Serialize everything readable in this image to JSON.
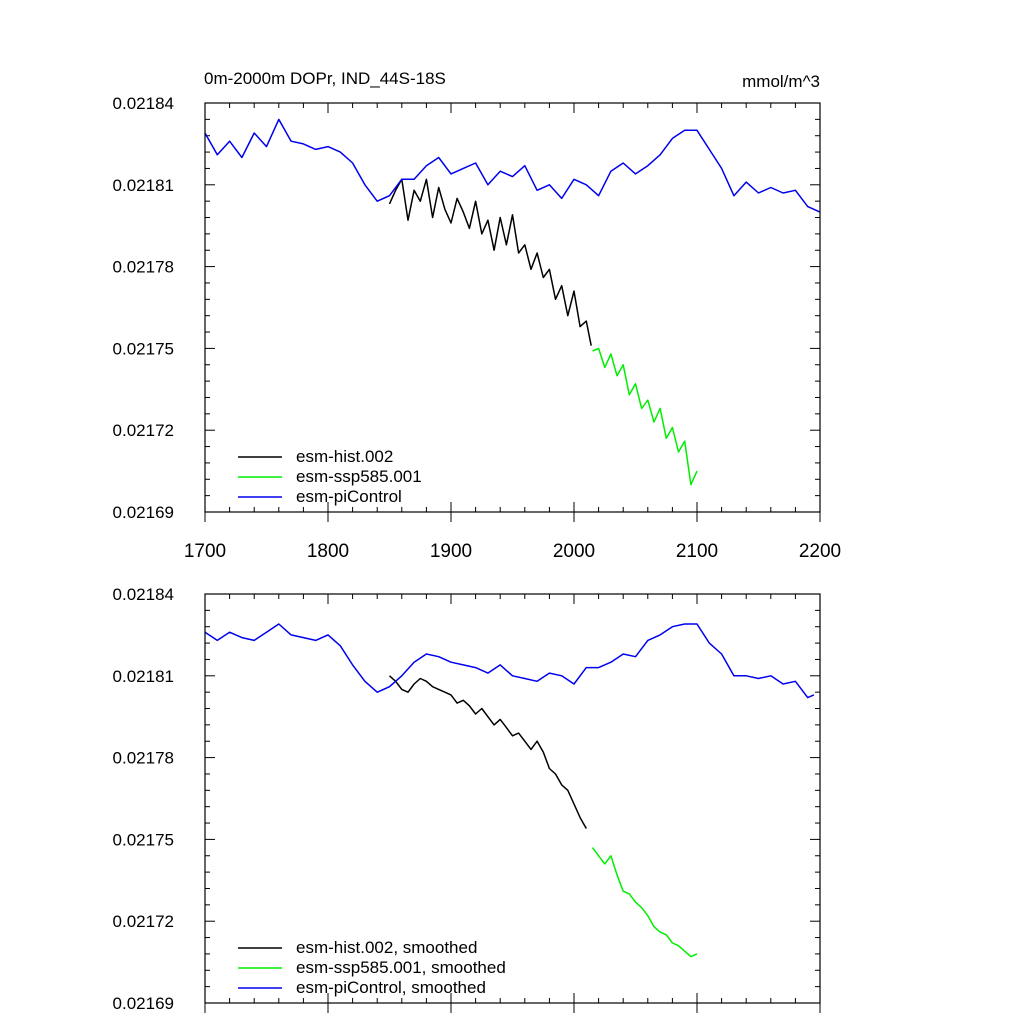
{
  "figure": {
    "title": "0m-2000m DOPr, IND_44S-18S",
    "units": "mmol/m^3"
  },
  "colors": {
    "esm_hist": "#000000",
    "esm_ssp585": "#00ee00",
    "esm_piControl": "#0000ee"
  },
  "chart_data": [
    {
      "type": "line",
      "title": "0m-2000m DOPr, IND_44S-18S",
      "units_label": "mmol/m^3",
      "xlabel": "",
      "ylabel": "",
      "xlim": [
        1700,
        2200
      ],
      "ylim": [
        0.02169,
        0.02184
      ],
      "x_ticks": [
        "1700",
        "1800",
        "1900",
        "2000",
        "2100",
        "2200"
      ],
      "y_ticks": [
        "0.02184",
        "0.02181",
        "0.02178",
        "0.02175",
        "0.02172",
        "0.02169"
      ],
      "grid": false,
      "legend_position": "bottom-left",
      "series": [
        {
          "name": "esm-hist.002",
          "color": "#000000",
          "x": [
            1850,
            1855,
            1860,
            1865,
            1870,
            1875,
            1880,
            1885,
            1890,
            1895,
            1900,
            1905,
            1910,
            1915,
            1920,
            1925,
            1930,
            1935,
            1940,
            1945,
            1950,
            1955,
            1960,
            1965,
            1970,
            1975,
            1980,
            1985,
            1990,
            1995,
            2000,
            2005,
            2010,
            2014
          ],
          "y": [
            0.021803,
            0.021808,
            0.021812,
            0.021797,
            0.021808,
            0.021804,
            0.021812,
            0.021798,
            0.021809,
            0.021801,
            0.021796,
            0.021805,
            0.0218,
            0.021794,
            0.021804,
            0.021792,
            0.021797,
            0.021786,
            0.021798,
            0.021788,
            0.021799,
            0.021785,
            0.021788,
            0.021779,
            0.021785,
            0.021776,
            0.021779,
            0.021768,
            0.021773,
            0.021762,
            0.021771,
            0.021758,
            0.02176,
            0.021751
          ]
        },
        {
          "name": "esm-ssp585.001",
          "color": "#00ee00",
          "x": [
            2015,
            2020,
            2025,
            2030,
            2035,
            2040,
            2045,
            2050,
            2055,
            2060,
            2065,
            2070,
            2075,
            2080,
            2085,
            2090,
            2095,
            2100
          ],
          "y": [
            0.021749,
            0.02175,
            0.021743,
            0.021748,
            0.02174,
            0.021744,
            0.021733,
            0.021737,
            0.021728,
            0.021731,
            0.021723,
            0.021728,
            0.021717,
            0.021721,
            0.021712,
            0.021716,
            0.0217,
            0.021705
          ]
        },
        {
          "name": "esm-piControl",
          "color": "#0000ee",
          "x": [
            1700,
            1710,
            1720,
            1730,
            1740,
            1750,
            1760,
            1770,
            1780,
            1790,
            1800,
            1810,
            1820,
            1830,
            1840,
            1850,
            1860,
            1870,
            1880,
            1890,
            1900,
            1910,
            1920,
            1930,
            1940,
            1950,
            1960,
            1970,
            1980,
            1990,
            2000,
            2010,
            2020,
            2030,
            2040,
            2050,
            2060,
            2070,
            2080,
            2090,
            2100,
            2110,
            2120,
            2130,
            2140,
            2150,
            2160,
            2170,
            2180,
            2190,
            2200
          ],
          "y": [
            0.021829,
            0.021821,
            0.021826,
            0.02182,
            0.021829,
            0.021824,
            0.021834,
            0.021826,
            0.021825,
            0.021823,
            0.021824,
            0.021822,
            0.021818,
            0.02181,
            0.021804,
            0.021806,
            0.021812,
            0.021812,
            0.021817,
            0.02182,
            0.021814,
            0.021816,
            0.021818,
            0.02181,
            0.021815,
            0.021813,
            0.021817,
            0.021808,
            0.02181,
            0.021805,
            0.021812,
            0.02181,
            0.021806,
            0.021815,
            0.021818,
            0.021814,
            0.021817,
            0.021821,
            0.021827,
            0.02183,
            0.02183,
            0.021823,
            0.021816,
            0.021806,
            0.021811,
            0.021807,
            0.021809,
            0.021807,
            0.021808,
            0.021802,
            0.0218
          ]
        }
      ]
    },
    {
      "type": "line",
      "title": "",
      "xlabel": "",
      "ylabel": "",
      "xlim": [
        1700,
        2200
      ],
      "ylim": [
        0.02169,
        0.02184
      ],
      "y_ticks": [
        "0.02184",
        "0.02181",
        "0.02178",
        "0.02175",
        "0.02172",
        "0.02169"
      ],
      "grid": false,
      "legend_position": "bottom-left",
      "series": [
        {
          "name": "esm-hist.002, smoothed",
          "color": "#000000",
          "x": [
            1850,
            1855,
            1860,
            1865,
            1870,
            1875,
            1880,
            1885,
            1890,
            1895,
            1900,
            1905,
            1910,
            1915,
            1920,
            1925,
            1930,
            1935,
            1940,
            1945,
            1950,
            1955,
            1960,
            1965,
            1970,
            1975,
            1980,
            1985,
            1990,
            1995,
            2000,
            2005,
            2010
          ],
          "y": [
            0.02181,
            0.021808,
            0.021805,
            0.021804,
            0.021807,
            0.021809,
            0.021808,
            0.021806,
            0.021805,
            0.021804,
            0.021803,
            0.0218,
            0.021801,
            0.021799,
            0.021796,
            0.021798,
            0.021795,
            0.021792,
            0.021794,
            0.021791,
            0.021788,
            0.021789,
            0.021786,
            0.021783,
            0.021786,
            0.021782,
            0.021776,
            0.021774,
            0.02177,
            0.021768,
            0.021763,
            0.021758,
            0.021754
          ]
        },
        {
          "name": "esm-ssp585.001, smoothed",
          "color": "#00ee00",
          "x": [
            2015,
            2020,
            2025,
            2030,
            2035,
            2040,
            2045,
            2050,
            2055,
            2060,
            2065,
            2070,
            2075,
            2080,
            2085,
            2090,
            2095,
            2100
          ],
          "y": [
            0.021747,
            0.021744,
            0.021741,
            0.021744,
            0.021737,
            0.021731,
            0.02173,
            0.021727,
            0.021725,
            0.021722,
            0.021718,
            0.021716,
            0.021715,
            0.021712,
            0.021711,
            0.021709,
            0.021707,
            0.021708
          ]
        },
        {
          "name": "esm-piControl, smoothed",
          "color": "#0000ee",
          "x": [
            1700,
            1710,
            1720,
            1730,
            1740,
            1750,
            1760,
            1770,
            1780,
            1790,
            1800,
            1810,
            1820,
            1830,
            1840,
            1850,
            1860,
            1870,
            1880,
            1890,
            1900,
            1910,
            1920,
            1930,
            1940,
            1950,
            1960,
            1970,
            1980,
            1990,
            2000,
            2010,
            2020,
            2030,
            2040,
            2050,
            2060,
            2070,
            2080,
            2090,
            2100,
            2110,
            2120,
            2130,
            2140,
            2150,
            2160,
            2170,
            2180,
            2190,
            2195
          ],
          "y": [
            0.021826,
            0.021823,
            0.021826,
            0.021824,
            0.021823,
            0.021826,
            0.021829,
            0.021825,
            0.021824,
            0.021823,
            0.021825,
            0.021821,
            0.021814,
            0.021808,
            0.021804,
            0.021806,
            0.02181,
            0.021815,
            0.021818,
            0.021817,
            0.021815,
            0.021814,
            0.021813,
            0.021811,
            0.021814,
            0.02181,
            0.021809,
            0.021808,
            0.021811,
            0.02181,
            0.021807,
            0.021813,
            0.021813,
            0.021815,
            0.021818,
            0.021817,
            0.021823,
            0.021825,
            0.021828,
            0.021829,
            0.021829,
            0.021822,
            0.021818,
            0.02181,
            0.02181,
            0.021809,
            0.02181,
            0.021807,
            0.021808,
            0.021802,
            0.021803
          ]
        }
      ]
    }
  ]
}
